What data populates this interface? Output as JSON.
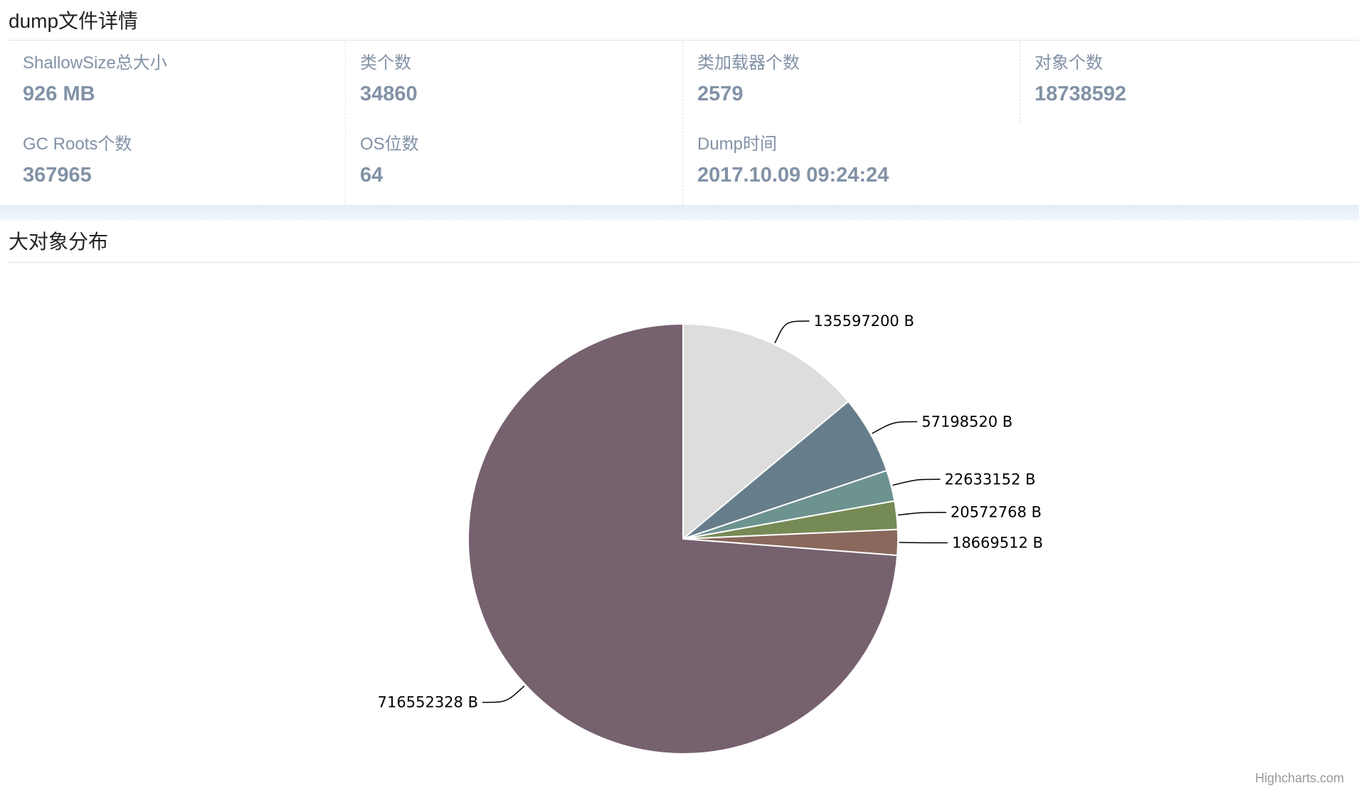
{
  "dump_section": {
    "title": "dump文件详情",
    "stats": [
      {
        "label": "ShallowSize总大小",
        "value": "926 MB"
      },
      {
        "label": "类个数",
        "value": "34860"
      },
      {
        "label": "类加载器个数",
        "value": "2579"
      },
      {
        "label": "对象个数",
        "value": "18738592"
      },
      {
        "label": "GC Roots个数",
        "value": "367965"
      },
      {
        "label": "OS位数",
        "value": "64"
      },
      {
        "label": "Dump时间",
        "value": "2017.10.09 09:24:24"
      }
    ]
  },
  "chart_section": {
    "title": "大对象分布",
    "credit": "Highcharts.com"
  },
  "chart_data": {
    "type": "pie",
    "title": "",
    "start_angle_deg": 0,
    "slices": [
      {
        "value": 135597200,
        "label": "135597200 B",
        "color": "#dddddd"
      },
      {
        "value": 57198520,
        "label": "57198520 B",
        "color": "#667d8c"
      },
      {
        "value": 22633152,
        "label": "22633152 B",
        "color": "#6d938f"
      },
      {
        "value": 20572768,
        "label": "20572768 B",
        "color": "#768a55"
      },
      {
        "value": 18669512,
        "label": "18669512 B",
        "color": "#8a685c"
      },
      {
        "value": 716552328,
        "label": "716552328 B",
        "color": "#76616f"
      }
    ]
  }
}
